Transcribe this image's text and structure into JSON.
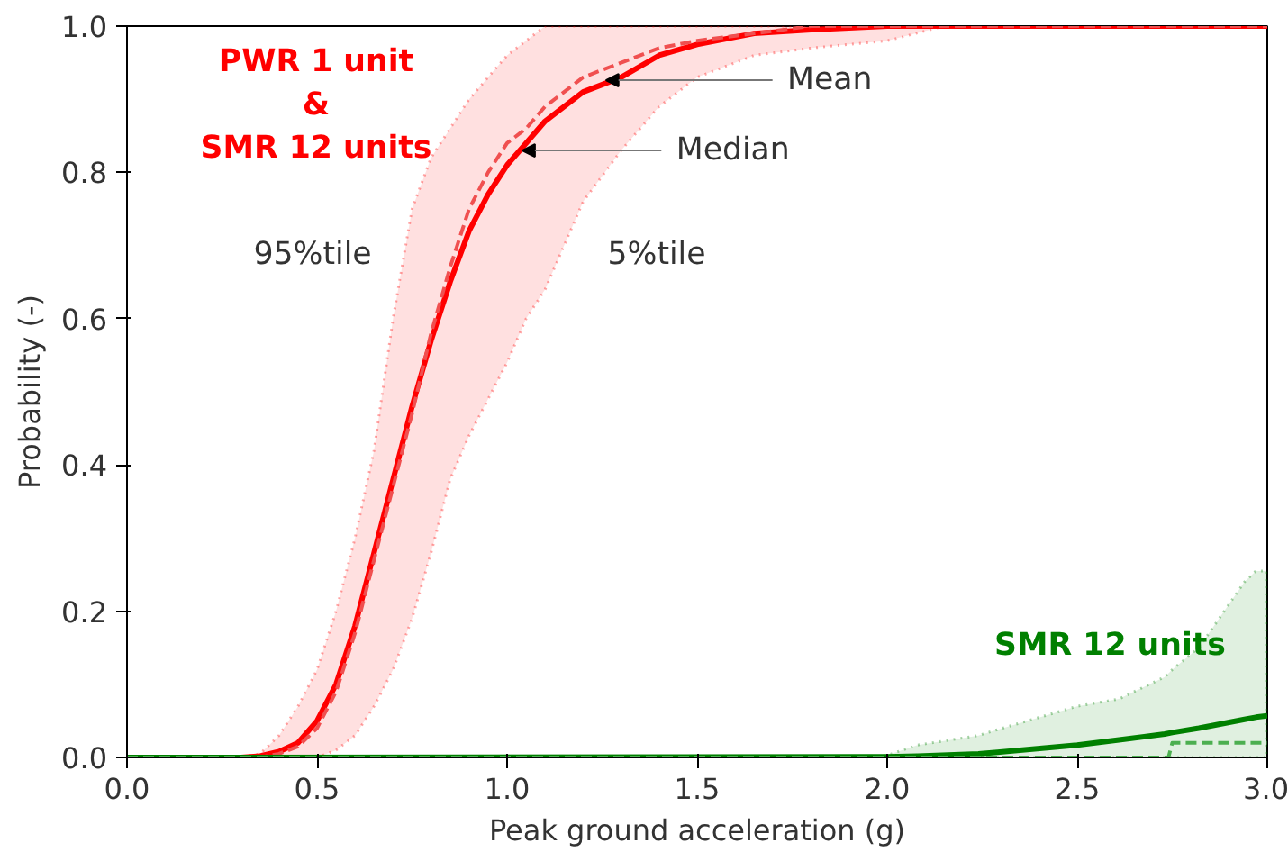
{
  "chart_data": {
    "type": "line",
    "xlabel": "Peak ground acceleration (g)",
    "ylabel": "Probability (-)",
    "xlim": [
      0,
      3
    ],
    "ylim": [
      0,
      1
    ],
    "xticks": [
      {
        "value": 0,
        "label": "0.0"
      },
      {
        "value": 0.5,
        "label": "0.5"
      },
      {
        "value": 1,
        "label": "1.0"
      },
      {
        "value": 1.5,
        "label": "1.5"
      },
      {
        "value": 2,
        "label": "2.0"
      },
      {
        "value": 2.5,
        "label": "2.5"
      },
      {
        "value": 3,
        "label": "3.0"
      }
    ],
    "yticks": [
      {
        "value": 0,
        "label": "0.0"
      },
      {
        "value": 0.2,
        "label": "0.2"
      },
      {
        "value": 0.4,
        "label": "0.4"
      },
      {
        "value": 0.6,
        "label": "0.6"
      },
      {
        "value": 0.8,
        "label": "0.8"
      },
      {
        "value": 1,
        "label": "1.0"
      }
    ],
    "grid": false,
    "series": [
      {
        "name": "PWR 1 unit\n&\nSMR 12 units",
        "color": "#ff0000",
        "line_style": "solid",
        "x": [
          0,
          0.3,
          0.35,
          0.4,
          0.45,
          0.5,
          0.55,
          0.6,
          0.65,
          0.7,
          0.75,
          0.8,
          0.85,
          0.9,
          0.95,
          1.0,
          1.05,
          1.1,
          1.2,
          1.3,
          1.4,
          1.5,
          1.65,
          1.8,
          2.0,
          2.15,
          2.5,
          3.0
        ],
        "values": [
          0,
          0,
          0.002,
          0.008,
          0.02,
          0.05,
          0.1,
          0.18,
          0.28,
          0.38,
          0.48,
          0.57,
          0.65,
          0.72,
          0.77,
          0.81,
          0.84,
          0.87,
          0.91,
          0.93,
          0.96,
          0.975,
          0.99,
          0.995,
          1,
          1,
          1,
          1
        ],
        "lower": [
          0,
          0,
          0,
          0,
          0,
          0,
          0.01,
          0.03,
          0.07,
          0.12,
          0.19,
          0.28,
          0.38,
          0.44,
          0.49,
          0.54,
          0.6,
          0.64,
          0.76,
          0.83,
          0.89,
          0.93,
          0.96,
          0.97,
          0.98,
          1,
          1,
          1
        ],
        "upper": [
          0,
          0,
          0.005,
          0.03,
          0.07,
          0.12,
          0.2,
          0.3,
          0.42,
          0.6,
          0.75,
          0.82,
          0.86,
          0.9,
          0.93,
          0.96,
          0.98,
          1,
          1,
          1,
          1,
          1,
          1,
          1,
          1,
          1,
          1,
          1
        ]
      },
      {
        "color": "#f05050",
        "line_style": "dashed",
        "x": [
          0,
          0.3,
          0.35,
          0.4,
          0.45,
          0.5,
          0.55,
          0.6,
          0.65,
          0.7,
          0.75,
          0.8,
          0.85,
          0.9,
          0.95,
          1.0,
          1.05,
          1.1,
          1.2,
          1.3,
          1.4,
          1.5,
          1.65,
          1.8,
          2.0,
          2.15,
          2.5,
          3.0
        ],
        "values": [
          0,
          0,
          0,
          0.005,
          0.015,
          0.04,
          0.09,
          0.17,
          0.27,
          0.37,
          0.47,
          0.58,
          0.67,
          0.75,
          0.8,
          0.84,
          0.86,
          0.89,
          0.93,
          0.95,
          0.97,
          0.98,
          0.99,
          1,
          1,
          1,
          1,
          1
        ]
      },
      {
        "name": "SMR 12 units",
        "color": "#008000",
        "line_style": "solid",
        "x": [
          0,
          1.95,
          2.0,
          2.08,
          2.24,
          2.29,
          2.5,
          2.61,
          2.73,
          2.75,
          2.82,
          2.86,
          2.94,
          2.97,
          3.0
        ],
        "values": [
          0,
          0.001,
          0.001,
          0.002,
          0.005,
          0.007,
          0.017,
          0.024,
          0.032,
          0.034,
          0.04,
          0.044,
          0.052,
          0.055,
          0.057
        ],
        "lower": [
          0,
          0,
          0,
          0,
          0,
          0,
          0,
          0,
          0,
          0,
          0,
          0,
          0,
          0,
          0
        ],
        "upper": [
          0,
          0,
          0.003,
          0.017,
          0.03,
          0.038,
          0.07,
          0.08,
          0.11,
          0.12,
          0.15,
          0.18,
          0.24,
          0.255,
          0.255
        ]
      },
      {
        "color": "#4caf50",
        "line_style": "dashed",
        "x": [
          0,
          2.74,
          2.75,
          3.0
        ],
        "values": [
          0,
          0,
          0.02,
          0.02
        ]
      }
    ],
    "annotations": [
      {
        "text": "Mean",
        "x": 1.26,
        "y": 0.926
      },
      {
        "text": "Median",
        "x": 1.04,
        "y": 0.83
      },
      "95%tile",
      "5%tile"
    ]
  }
}
